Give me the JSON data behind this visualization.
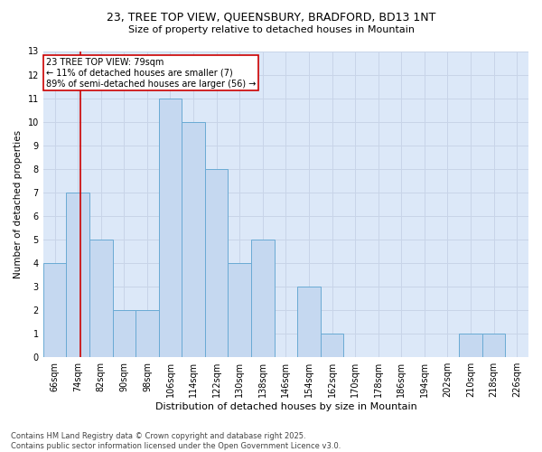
{
  "title": "23, TREE TOP VIEW, QUEENSBURY, BRADFORD, BD13 1NT",
  "subtitle": "Size of property relative to detached houses in Mountain",
  "xlabel": "Distribution of detached houses by size in Mountain",
  "ylabel": "Number of detached properties",
  "footer_line1": "Contains HM Land Registry data © Crown copyright and database right 2025.",
  "footer_line2": "Contains public sector information licensed under the Open Government Licence v3.0.",
  "bin_labels": [
    "66sqm",
    "74sqm",
    "82sqm",
    "90sqm",
    "98sqm",
    "106sqm",
    "114sqm",
    "122sqm",
    "130sqm",
    "138sqm",
    "146sqm",
    "154sqm",
    "162sqm",
    "170sqm",
    "178sqm",
    "186sqm",
    "194sqm",
    "202sqm",
    "210sqm",
    "218sqm",
    "226sqm"
  ],
  "bin_edges": [
    66,
    74,
    82,
    90,
    98,
    106,
    114,
    122,
    130,
    138,
    146,
    154,
    162,
    170,
    178,
    186,
    194,
    202,
    210,
    218,
    226
  ],
  "counts": [
    4,
    7,
    5,
    2,
    2,
    11,
    10,
    8,
    4,
    5,
    0,
    3,
    1,
    0,
    0,
    0,
    0,
    0,
    1,
    1,
    0
  ],
  "bar_color": "#c5d8f0",
  "bar_edge_color": "#6aaad4",
  "property_size": 79,
  "property_line_color": "#cc0000",
  "annotation_text": "23 TREE TOP VIEW: 79sqm\n← 11% of detached houses are smaller (7)\n89% of semi-detached houses are larger (56) →",
  "annotation_box_color": "#ffffff",
  "annotation_box_edge_color": "#cc0000",
  "ylim": [
    0,
    13
  ],
  "yticks": [
    0,
    1,
    2,
    3,
    4,
    5,
    6,
    7,
    8,
    9,
    10,
    11,
    12,
    13
  ],
  "grid_color": "#c8d4e8",
  "background_color": "#dce8f8",
  "plot_bg_color": "#dce8f8",
  "title_fontsize": 9,
  "subtitle_fontsize": 8,
  "ylabel_fontsize": 7.5,
  "xlabel_fontsize": 8,
  "tick_fontsize": 7,
  "annotation_fontsize": 7,
  "footer_fontsize": 6
}
